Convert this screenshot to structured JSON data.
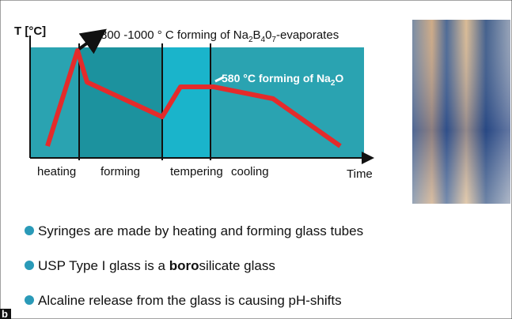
{
  "diagram": {
    "y_axis_label": "T [°C]",
    "x_axis_label": "Time",
    "annotation_high": [
      "800 -1000 ° C forming of Na",
      "2",
      "B",
      "4",
      "0",
      "7",
      "-evaporates"
    ],
    "annotation_low": [
      "580 °C  forming of Na",
      "2",
      "O"
    ],
    "phases": [
      "heating",
      "forming",
      "tempering",
      "cooling"
    ]
  },
  "bullets": [
    [
      "Syringes are made by heating and forming glass tubes"
    ],
    [
      "USP Type I glass is a ",
      "boro",
      "silicate glass"
    ],
    [
      "Alcaline release from the glass is causing pH-shifts"
    ]
  ],
  "corner_label": "b"
}
